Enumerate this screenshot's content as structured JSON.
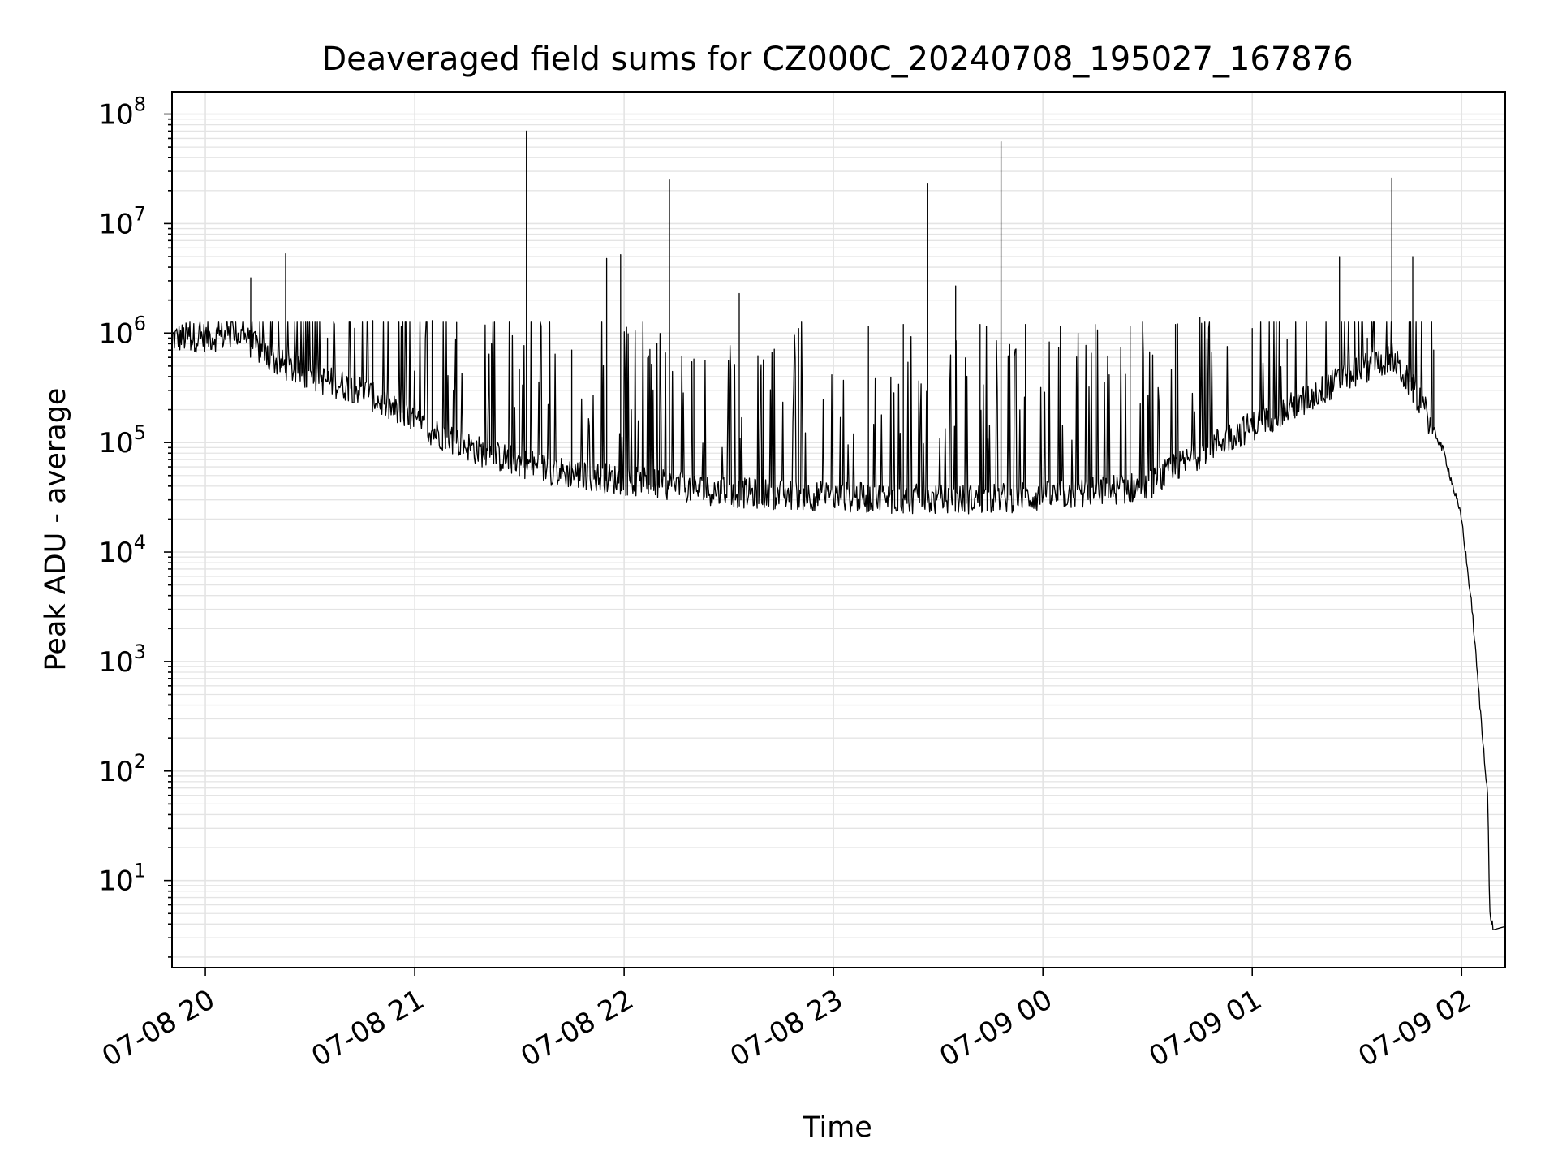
{
  "chart_data": {
    "type": "line",
    "title": "Deaveraged field sums for CZ000C_20240708_195027_167876",
    "xlabel": "Time",
    "ylabel": "Peak ADU - average",
    "yscale": "log",
    "ylim": [
      1.6,
      160000000
    ],
    "xlim": [
      "2024-07-08 19:50:27",
      "2024-07-09 02:12:30"
    ],
    "grid": true,
    "line_color": "#000000",
    "grid_color": "#e4e4e4",
    "x_ticks": [
      {
        "value": "2024-07-08 20:00",
        "label": "07-08 20"
      },
      {
        "value": "2024-07-08 21:00",
        "label": "07-08 21"
      },
      {
        "value": "2024-07-08 22:00",
        "label": "07-08 22"
      },
      {
        "value": "2024-07-08 23:00",
        "label": "07-08 23"
      },
      {
        "value": "2024-07-09 00:00",
        "label": "07-09 00"
      },
      {
        "value": "2024-07-09 01:00",
        "label": "07-09 01"
      },
      {
        "value": "2024-07-09 02:00",
        "label": "07-09 02"
      }
    ],
    "y_ticks": [
      {
        "value": 10,
        "base": "10",
        "exp": "1"
      },
      {
        "value": 100,
        "base": "10",
        "exp": "2"
      },
      {
        "value": 1000,
        "base": "10",
        "exp": "3"
      },
      {
        "value": 10000,
        "base": "10",
        "exp": "4"
      },
      {
        "value": 100000,
        "base": "10",
        "exp": "5"
      },
      {
        "value": 1000000,
        "base": "10",
        "exp": "6"
      },
      {
        "value": 10000000,
        "base": "10",
        "exp": "7"
      },
      {
        "value": 100000000,
        "base": "10",
        "exp": "8"
      }
    ],
    "baseline": [
      {
        "x": "2024-07-08 19:50:27",
        "y": 900000
      },
      {
        "x": "2024-07-08 20:10",
        "y": 950000
      },
      {
        "x": "2024-07-08 20:20",
        "y": 550000
      },
      {
        "x": "2024-07-08 20:30",
        "y": 400000
      },
      {
        "x": "2024-07-08 20:45",
        "y": 300000
      },
      {
        "x": "2024-07-08 21:00",
        "y": 150000
      },
      {
        "x": "2024-07-08 21:20",
        "y": 80000
      },
      {
        "x": "2024-07-08 21:40",
        "y": 55000
      },
      {
        "x": "2024-07-08 22:00",
        "y": 45000
      },
      {
        "x": "2024-07-08 22:30",
        "y": 35000
      },
      {
        "x": "2024-07-08 23:00",
        "y": 32000
      },
      {
        "x": "2024-07-08 23:30",
        "y": 30000
      },
      {
        "x": "2024-07-09 00:00",
        "y": 32000
      },
      {
        "x": "2024-07-09 00:30",
        "y": 40000
      },
      {
        "x": "2024-07-09 00:50",
        "y": 100000
      },
      {
        "x": "2024-07-09 01:10",
        "y": 200000
      },
      {
        "x": "2024-07-09 01:30",
        "y": 450000
      },
      {
        "x": "2024-07-09 01:40",
        "y": 600000
      },
      {
        "x": "2024-07-09 01:48",
        "y": 250000
      },
      {
        "x": "2024-07-09 01:55",
        "y": 80000
      },
      {
        "x": "2024-07-09 02:00",
        "y": 20000
      },
      {
        "x": "2024-07-09 02:03",
        "y": 3000
      },
      {
        "x": "2024-07-09 02:06",
        "y": 200
      },
      {
        "x": "2024-07-09 02:07:30",
        "y": 60
      },
      {
        "x": "2024-07-09 02:08",
        "y": 5
      },
      {
        "x": "2024-07-09 02:09",
        "y": 3.8
      }
    ],
    "peaks": [
      {
        "x": "2024-07-08 20:13",
        "y": 3200000
      },
      {
        "x": "2024-07-08 20:23",
        "y": 5300000
      },
      {
        "x": "2024-07-08 20:35",
        "y": 900000
      },
      {
        "x": "2024-07-08 20:48",
        "y": 1300000
      },
      {
        "x": "2024-07-08 21:05",
        "y": 1300000
      },
      {
        "x": "2024-07-08 21:12",
        "y": 1250000
      },
      {
        "x": "2024-07-08 21:22",
        "y": 800000
      },
      {
        "x": "2024-07-08 21:30",
        "y": 470000
      },
      {
        "x": "2024-07-08 21:32",
        "y": 70000000
      },
      {
        "x": "2024-07-08 21:45",
        "y": 700000
      },
      {
        "x": "2024-07-08 21:55",
        "y": 4800000
      },
      {
        "x": "2024-07-08 21:59",
        "y": 5200000
      },
      {
        "x": "2024-07-08 22:07",
        "y": 620000
      },
      {
        "x": "2024-07-08 22:13",
        "y": 25000000
      },
      {
        "x": "2024-07-08 22:20",
        "y": 580000
      },
      {
        "x": "2024-07-08 22:33",
        "y": 2300000
      },
      {
        "x": "2024-07-08 22:40",
        "y": 430000
      },
      {
        "x": "2024-07-08 22:50",
        "y": 1100000
      },
      {
        "x": "2024-07-08 23:02",
        "y": 150000
      },
      {
        "x": "2024-07-08 23:10",
        "y": 1150000
      },
      {
        "x": "2024-07-08 23:20",
        "y": 1200000
      },
      {
        "x": "2024-07-08 23:27",
        "y": 23000000
      },
      {
        "x": "2024-07-08 23:35",
        "y": 2700000
      },
      {
        "x": "2024-07-08 23:42",
        "y": 1200000
      },
      {
        "x": "2024-07-08 23:48",
        "y": 56000000
      },
      {
        "x": "2024-07-08 23:55",
        "y": 1200000
      },
      {
        "x": "2024-07-09 00:05",
        "y": 1150000
      },
      {
        "x": "2024-07-09 00:15",
        "y": 1200000
      },
      {
        "x": "2024-07-09 00:25",
        "y": 1150000
      },
      {
        "x": "2024-07-09 00:38",
        "y": 1200000
      },
      {
        "x": "2024-07-09 00:45",
        "y": 1400000
      },
      {
        "x": "2024-07-09 01:00",
        "y": 1100000
      },
      {
        "x": "2024-07-09 01:10",
        "y": 880000
      },
      {
        "x": "2024-07-09 01:25",
        "y": 5000000
      },
      {
        "x": "2024-07-09 01:33",
        "y": 900000
      },
      {
        "x": "2024-07-09 01:40",
        "y": 26000000
      },
      {
        "x": "2024-07-09 01:46",
        "y": 5000000
      },
      {
        "x": "2024-07-09 01:52",
        "y": 700000
      }
    ]
  }
}
